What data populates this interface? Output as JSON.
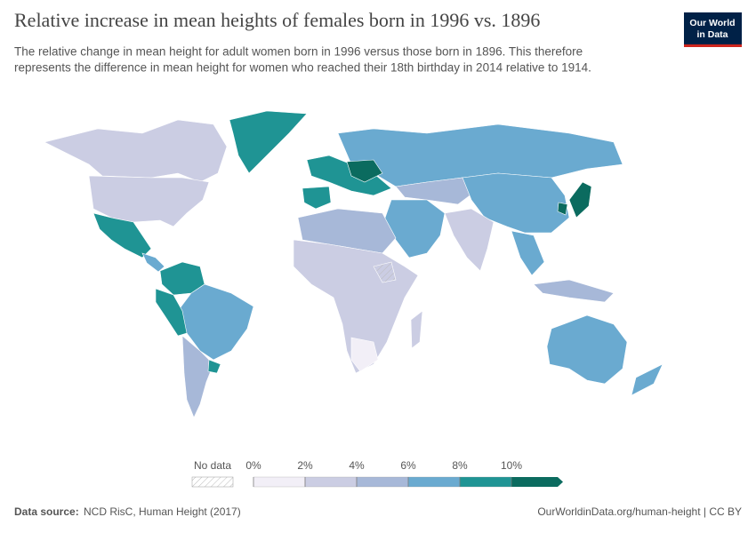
{
  "header": {
    "title": "Relative increase in mean heights of females born in 1996 vs. 1896",
    "subtitle_lines": [
      "The relative change in mean height for adult women born in 1996 versus those born in 1896. This therefore",
      "represents the difference in mean height for women who reached their 18th birthday in 2014 relative to 1914."
    ]
  },
  "logo": {
    "lines": [
      "Our World",
      "in Data"
    ]
  },
  "legend": {
    "no_data": "No data",
    "ticks": [
      {
        "value": 0,
        "label": "0%"
      },
      {
        "value": 2,
        "label": "2%"
      },
      {
        "value": 4,
        "label": "4%"
      },
      {
        "value": 6,
        "label": "6%"
      },
      {
        "value": 8,
        "label": "8%"
      },
      {
        "value": 10,
        "label": "10%"
      }
    ],
    "colors": [
      "#f2eff7",
      "#cbcde3",
      "#a7b8d8",
      "#6aaad0",
      "#1f9494",
      "#0b6b5f"
    ]
  },
  "footer": {
    "source_label": "Data source:",
    "source": "NCD RisC, Human Height (2017)",
    "url": "OurWorldinData.org/human-height | CC BY"
  }
}
